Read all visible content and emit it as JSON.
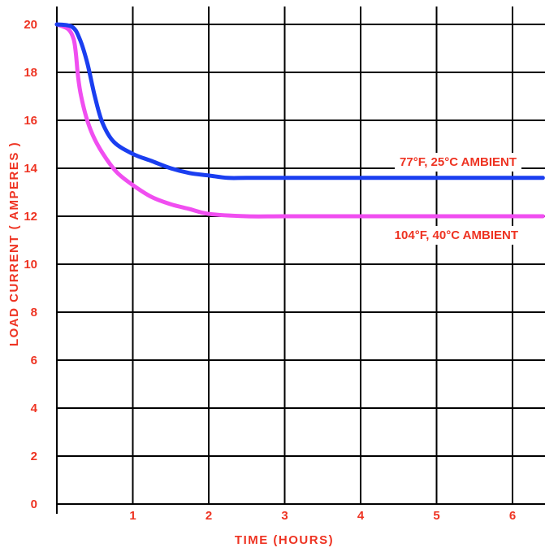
{
  "chart_data": {
    "type": "line",
    "title": "",
    "xlabel": "TIME (HOURS)",
    "ylabel": "LOAD CURRENT ( AMPERES )",
    "xlim": [
      0,
      6.4
    ],
    "ylim": [
      0,
      20
    ],
    "xticks": [
      1,
      2,
      3,
      4,
      5,
      6
    ],
    "yticks": [
      0,
      2,
      4,
      6,
      8,
      10,
      12,
      14,
      16,
      18,
      20
    ],
    "grid": true,
    "series": [
      {
        "name": "77°F, 25°C AMBIENT",
        "color": "#1a3ef0",
        "x": [
          0,
          0.2,
          0.3,
          0.4,
          0.5,
          0.6,
          0.75,
          1.0,
          1.25,
          1.5,
          1.75,
          2.0,
          2.25,
          2.5,
          3.0,
          4.0,
          5.0,
          6.0,
          6.4
        ],
        "y": [
          20,
          19.9,
          19.4,
          18.4,
          17.0,
          15.9,
          15.1,
          14.6,
          14.3,
          14.0,
          13.8,
          13.7,
          13.6,
          13.6,
          13.6,
          13.6,
          13.6,
          13.6,
          13.6
        ]
      },
      {
        "name": "104°F, 40°C AMBIENT",
        "color": "#f04ef0",
        "x": [
          0,
          0.15,
          0.22,
          0.25,
          0.28,
          0.32,
          0.4,
          0.5,
          0.65,
          0.8,
          1.0,
          1.25,
          1.5,
          1.75,
          2.0,
          2.5,
          3.0,
          4.0,
          5.0,
          6.0,
          6.4
        ],
        "y": [
          20,
          19.8,
          19.4,
          18.8,
          17.8,
          17.0,
          16.0,
          15.2,
          14.4,
          13.8,
          13.3,
          12.8,
          12.5,
          12.3,
          12.1,
          12.0,
          12.0,
          12.0,
          12.0,
          12.0,
          12.0
        ]
      }
    ]
  }
}
